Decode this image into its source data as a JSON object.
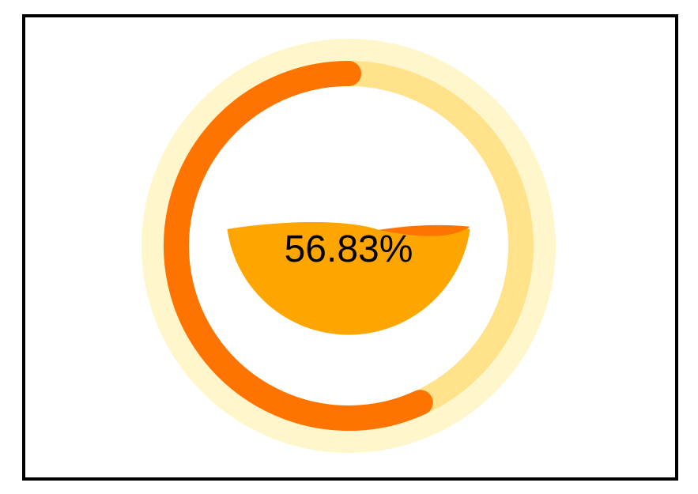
{
  "chart_data": {
    "type": "liquid-gauge",
    "value": 56.83,
    "label": "56.83%",
    "colors": {
      "outer_ring": "#FFF6CC",
      "track": "#FFE28A",
      "progress": "#FF7300",
      "liquid": "#FFA500",
      "liquid_wave": "#FF7300",
      "text": "#000000",
      "border": "#000000"
    }
  }
}
